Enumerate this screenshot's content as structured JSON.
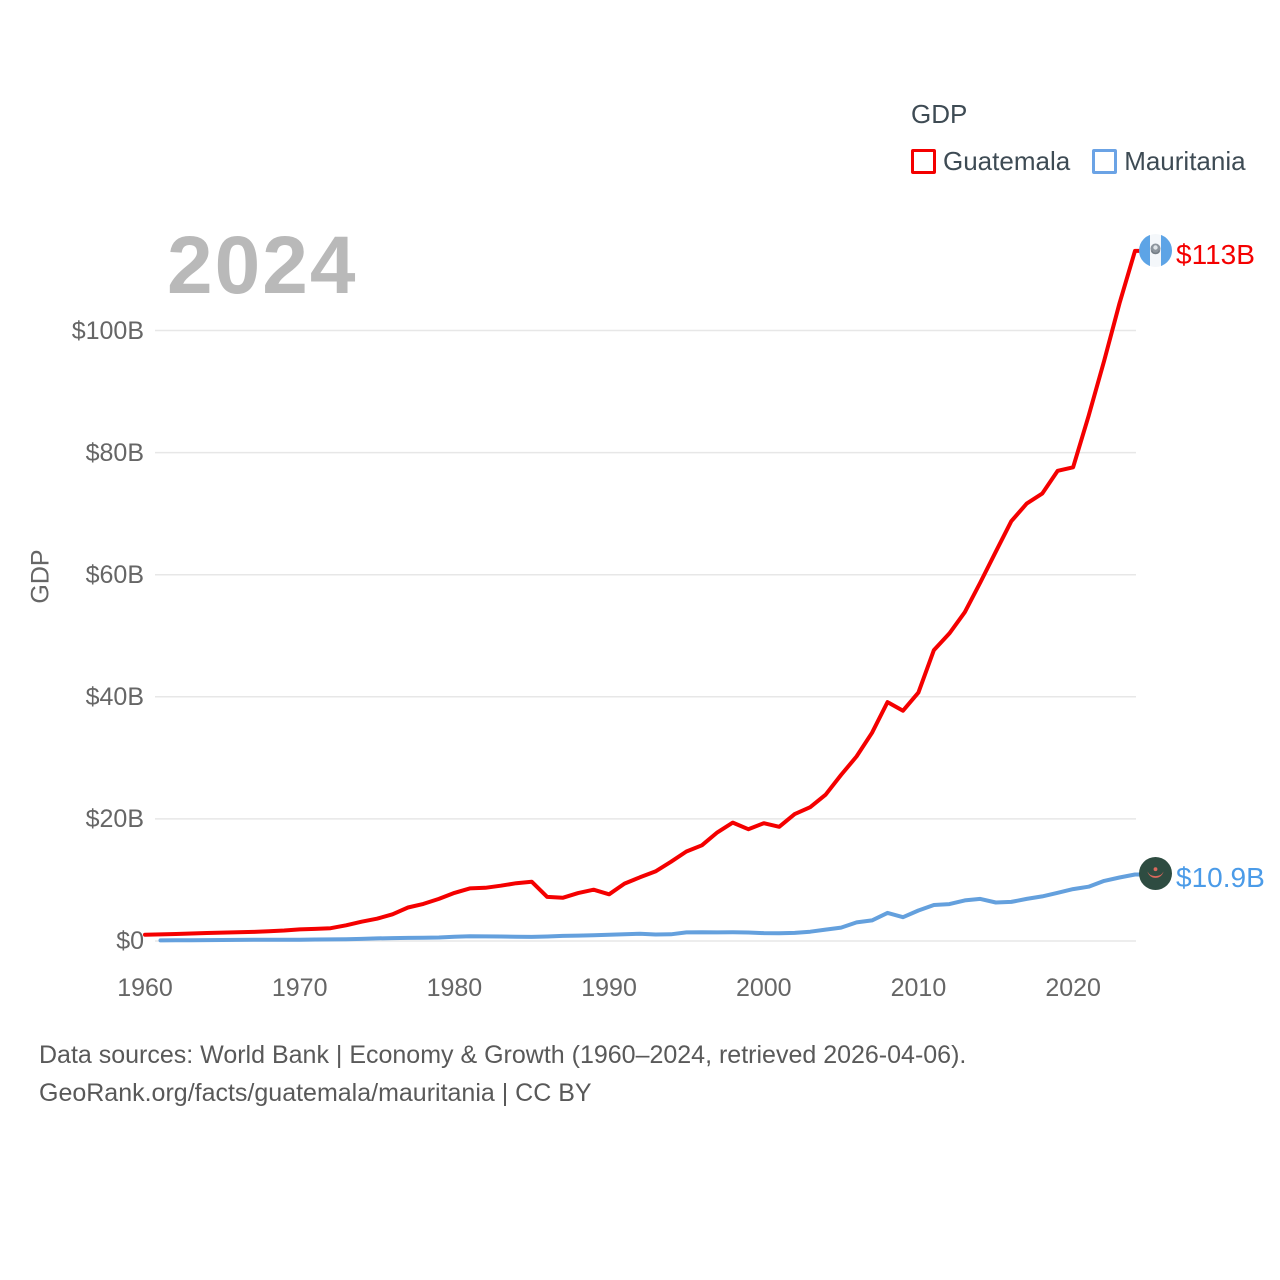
{
  "watermark": "2024",
  "legend": {
    "title": "GDP",
    "items": [
      {
        "label": "Guatemala",
        "color": "#f40000"
      },
      {
        "label": "Mauritania",
        "color": "#6ba3e5"
      }
    ]
  },
  "y_axis": {
    "label": "GDP",
    "ticks": [
      "$0",
      "$20B",
      "$40B",
      "$60B",
      "$80B",
      "$100B"
    ],
    "tick_values": [
      0,
      20,
      40,
      60,
      80,
      100
    ]
  },
  "x_axis": {
    "ticks": [
      "1960",
      "1970",
      "1980",
      "1990",
      "2000",
      "2010",
      "2020"
    ],
    "tick_values": [
      1960,
      1970,
      1980,
      1990,
      2000,
      2010,
      2020
    ]
  },
  "end_labels": [
    {
      "series": "Guatemala",
      "text": "$113B",
      "color": "#f40000",
      "flag": "guatemala-flag"
    },
    {
      "series": "Mauritania",
      "text": "$10.9B",
      "color": "#4b9be8",
      "flag": "mauritania-flag"
    }
  ],
  "footer": {
    "line1": "Data sources: World Bank | Economy & Growth (1960–2024, retrieved 2026-04-06).",
    "line2": "GeoRank.org/facts/guatemala/mauritania | CC BY"
  },
  "chart_data": {
    "type": "line",
    "title": "GDP",
    "xlabel": "",
    "ylabel": "GDP",
    "ylim": [
      0,
      118
    ],
    "xlim": [
      1960,
      2024
    ],
    "grid": true,
    "legend_position": "top-right",
    "x": [
      1960,
      1961,
      1962,
      1963,
      1964,
      1965,
      1966,
      1967,
      1968,
      1969,
      1970,
      1971,
      1972,
      1973,
      1974,
      1975,
      1976,
      1977,
      1978,
      1979,
      1980,
      1981,
      1982,
      1983,
      1984,
      1985,
      1986,
      1987,
      1988,
      1989,
      1990,
      1991,
      1992,
      1993,
      1994,
      1995,
      1996,
      1997,
      1998,
      1999,
      2000,
      2001,
      2002,
      2003,
      2004,
      2005,
      2006,
      2007,
      2008,
      2009,
      2010,
      2011,
      2012,
      2013,
      2014,
      2015,
      2016,
      2017,
      2018,
      2019,
      2020,
      2021,
      2022,
      2023,
      2024
    ],
    "series": [
      {
        "name": "Guatemala",
        "color": "#f40000",
        "end_value_label": "$113B",
        "values": [
          1.04,
          1.08,
          1.14,
          1.23,
          1.31,
          1.37,
          1.43,
          1.49,
          1.61,
          1.72,
          1.9,
          1.98,
          2.1,
          2.57,
          3.16,
          3.65,
          4.37,
          5.48,
          6.07,
          6.9,
          7.88,
          8.61,
          8.72,
          9.05,
          9.47,
          9.72,
          7.23,
          7.08,
          7.84,
          8.41,
          7.65,
          9.41,
          10.44,
          11.4,
          12.98,
          14.66,
          15.67,
          17.79,
          19.4,
          18.32,
          19.29,
          18.7,
          20.78,
          21.92,
          23.97,
          27.21,
          30.23,
          34.11,
          39.14,
          37.73,
          40.68,
          47.65,
          50.39,
          53.85,
          58.72,
          63.77,
          68.76,
          71.65,
          73.28,
          77.02,
          77.6,
          86.01,
          95.0,
          104.45,
          113.04
        ]
      },
      {
        "name": "Mauritania",
        "color": "#64a0dd",
        "end_value_label": "$10.9B",
        "values": [
          null,
          0.1,
          0.11,
          0.12,
          0.14,
          0.16,
          0.18,
          0.19,
          0.2,
          0.21,
          0.22,
          0.24,
          0.26,
          0.28,
          0.35,
          0.42,
          0.48,
          0.51,
          0.52,
          0.57,
          0.71,
          0.78,
          0.76,
          0.74,
          0.71,
          0.67,
          0.74,
          0.84,
          0.88,
          0.93,
          1.02,
          1.12,
          1.18,
          1.06,
          1.09,
          1.41,
          1.44,
          1.41,
          1.42,
          1.4,
          1.29,
          1.28,
          1.33,
          1.53,
          1.86,
          2.19,
          3.04,
          3.37,
          4.6,
          3.9,
          5.0,
          5.9,
          6.05,
          6.65,
          6.9,
          6.3,
          6.4,
          6.9,
          7.3,
          7.9,
          8.5,
          8.9,
          9.85,
          10.4,
          10.9
        ]
      }
    ]
  }
}
